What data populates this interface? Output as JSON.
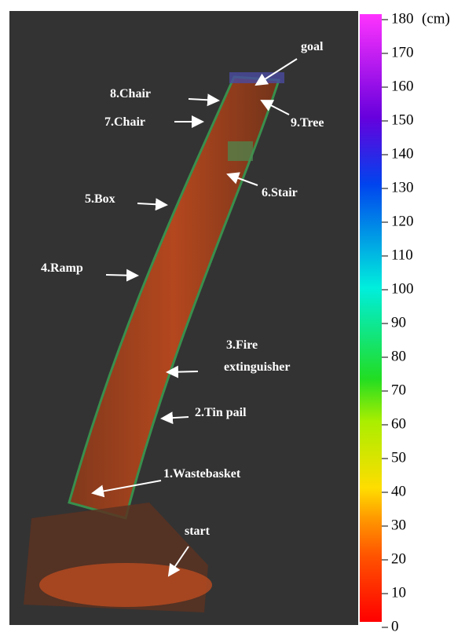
{
  "colorbar": {
    "unit": "(cm)",
    "ticks": [
      0,
      10,
      20,
      30,
      40,
      50,
      60,
      70,
      80,
      90,
      100,
      110,
      120,
      130,
      140,
      150,
      160,
      170,
      180
    ],
    "range": [
      0,
      180
    ]
  },
  "annotations": {
    "goal": "goal",
    "chair8": "8.Chair",
    "tree9": "9.Tree",
    "chair7": "7.Chair",
    "stair6": "6.Stair",
    "box5": "5.Box",
    "ramp4": "4.Ramp",
    "fire3": [
      "3.Fire",
      "extinguisher"
    ],
    "tinpail2": "2.Tin pail",
    "wastebasket1": "1.Wastebasket",
    "start": "start"
  }
}
